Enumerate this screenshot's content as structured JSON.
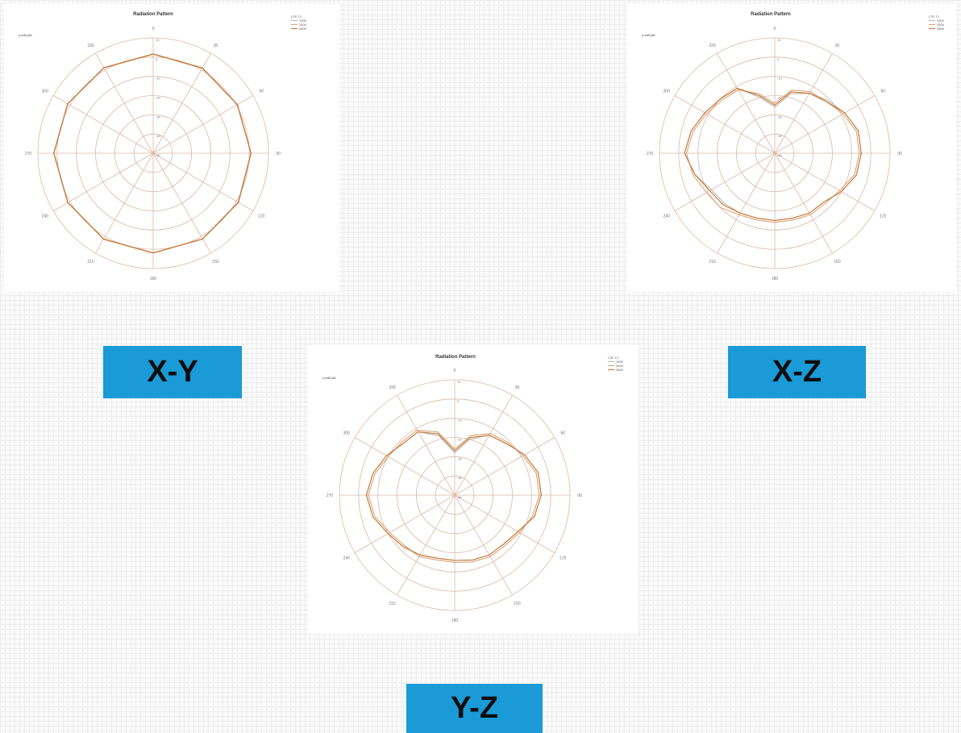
{
  "colors": {
    "grid": "#d9b8a8",
    "axis": "#c6a89a",
    "tick_text": "#777777",
    "label_bg": "#1a9ad6",
    "label_text": "#0d0d0d"
  },
  "labels": {
    "xy": "X-Y",
    "xz": "X-Z",
    "yz": "Y-Z"
  },
  "chart_data": [
    {
      "type": "polar",
      "plane": "X-Y",
      "title": "Radiation Pattern",
      "unit_label": "(mdBi)dB",
      "legend_title": "LTE-T1",
      "legend": [
        "1900",
        "2400",
        "2600"
      ],
      "angle_labels": [
        "0",
        "30",
        "60",
        "90",
        "120",
        "150",
        "180",
        "210",
        "240",
        "270",
        "300",
        "330"
      ],
      "radial_ticks": [
        "10",
        "0",
        "-10",
        "-20",
        "-30",
        "-40",
        "-50"
      ],
      "rlim": [
        -50,
        10
      ],
      "angles": [
        0,
        30,
        60,
        90,
        120,
        150,
        180,
        210,
        240,
        270,
        300,
        330
      ],
      "series": [
        {
          "name": "1900",
          "color": "#b9b9b9",
          "values": [
            1.5,
            1.0,
            0.5,
            0.8,
            1.0,
            1.4,
            1.8,
            1.5,
            1.2,
            1.6,
            1.3,
            1.2
          ]
        },
        {
          "name": "2400",
          "color": "#d8a57a",
          "values": [
            1.7,
            1.3,
            0.7,
            1.0,
            1.3,
            1.6,
            2.0,
            1.7,
            1.4,
            1.8,
            1.5,
            1.4
          ]
        },
        {
          "name": "2600",
          "color": "#c8762f",
          "values": [
            1.6,
            1.2,
            0.6,
            0.9,
            1.2,
            1.5,
            1.9,
            1.6,
            1.3,
            1.7,
            1.4,
            1.3
          ]
        }
      ]
    },
    {
      "type": "polar",
      "plane": "X-Z",
      "title": "Radiation Pattern",
      "unit_label": "(mdBi)dB",
      "legend_title": "LTE-T1",
      "legend": [
        "1900",
        "2400",
        "2600"
      ],
      "angle_labels": [
        "0",
        "30",
        "60",
        "90",
        "120",
        "150",
        "180",
        "210",
        "240",
        "270",
        "300",
        "330"
      ],
      "radial_ticks": [
        "10",
        "0",
        "-10",
        "-20",
        "-30",
        "-40",
        "-50"
      ],
      "rlim": [
        -50,
        10
      ],
      "angles": [
        0,
        15,
        30,
        45,
        60,
        75,
        90,
        105,
        120,
        135,
        150,
        165,
        180,
        195,
        210,
        225,
        240,
        255,
        270,
        285,
        300,
        315,
        330,
        345
      ],
      "series": [
        {
          "name": "1900",
          "color": "#b9b9b9",
          "values": [
            -26,
            -18,
            -14,
            -11,
            -8,
            -5,
            -5,
            -6,
            -10,
            -14,
            -14,
            -15,
            -15,
            -15,
            -14,
            -13,
            -12,
            -7,
            -3,
            -5,
            -8,
            -10,
            -11,
            -20
          ]
        },
        {
          "name": "2400",
          "color": "#d8a57a",
          "values": [
            -24,
            -16,
            -13,
            -12,
            -9,
            -6,
            -6,
            -7,
            -11,
            -13,
            -13,
            -14,
            -14,
            -14,
            -13,
            -10,
            -9,
            -6,
            -4,
            -6,
            -9,
            -11,
            -12,
            -18
          ]
        },
        {
          "name": "2600",
          "color": "#c8762f",
          "values": [
            -25,
            -17,
            -14,
            -12,
            -8,
            -5,
            -5,
            -6,
            -10,
            -14,
            -14,
            -15,
            -15,
            -15,
            -14,
            -12,
            -11,
            -7,
            -3,
            -5,
            -8,
            -10,
            -11,
            -19
          ]
        }
      ]
    },
    {
      "type": "polar",
      "plane": "Y-Z",
      "title": "Radiation Pattern",
      "unit_label": "(mdBi)dB",
      "legend_title": "LTE-T1",
      "legend": [
        "1900",
        "2400",
        "2600"
      ],
      "angle_labels": [
        "0",
        "30",
        "60",
        "90",
        "120",
        "150",
        "180",
        "210",
        "240",
        "270",
        "300",
        "330"
      ],
      "radial_ticks": [
        "10",
        "0",
        "-10",
        "-20",
        "-30",
        "-40",
        "-50"
      ],
      "rlim": [
        -50,
        10
      ],
      "angles": [
        0,
        15,
        30,
        45,
        60,
        75,
        90,
        105,
        120,
        135,
        150,
        165,
        180,
        195,
        210,
        225,
        240,
        255,
        270,
        285,
        300,
        315,
        330,
        345
      ],
      "series": [
        {
          "name": "1900",
          "color": "#b9b9b9",
          "values": [
            -28,
            -20,
            -14,
            -12,
            -8,
            -5,
            -5,
            -7,
            -12,
            -14,
            -14,
            -15,
            -16,
            -16,
            -14,
            -12,
            -10,
            -6,
            -4,
            -6,
            -9,
            -12,
            -12,
            -18
          ]
        },
        {
          "name": "2400",
          "color": "#d8a57a",
          "values": [
            -26,
            -18,
            -13,
            -11,
            -9,
            -6,
            -6,
            -8,
            -11,
            -13,
            -13,
            -14,
            -15,
            -15,
            -13,
            -13,
            -11,
            -7,
            -5,
            -7,
            -10,
            -11,
            -11,
            -16
          ]
        },
        {
          "name": "2600",
          "color": "#c8762f",
          "values": [
            -27,
            -19,
            -14,
            -12,
            -8,
            -5,
            -5,
            -7,
            -12,
            -14,
            -14,
            -15,
            -16,
            -16,
            -14,
            -12,
            -10,
            -6,
            -4,
            -6,
            -9,
            -12,
            -12,
            -17
          ]
        }
      ]
    }
  ]
}
